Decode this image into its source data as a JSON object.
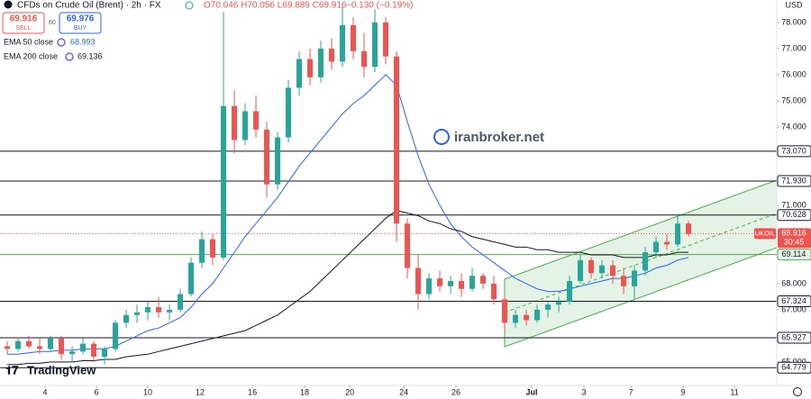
{
  "header": {
    "symbol": "CFDs on Crude Oil (Brent) · 2h · FX",
    "ohlc": "O70.046 H70.056 L69.889 C69.916",
    "change": "−0.130 (−0.19%)",
    "sell_price": "69.916",
    "sell": "SELL",
    "spread": "60",
    "buy_price": "69.976",
    "buy": "BUY",
    "currency": "USD",
    "watermark": "iranbroker.net",
    "brand": "TradingView"
  },
  "chart_data": {
    "type": "candlestick",
    "up_color": "#26a69a",
    "down_color": "#ef5350",
    "xlim": [
      -0.67,
      71.08
    ],
    "ylim": [
      64.1,
      78.86
    ],
    "xticks": [
      {
        "value": 3.5,
        "label": "4"
      },
      {
        "value": 8.25,
        "label": "6"
      },
      {
        "value": 13,
        "label": "10"
      },
      {
        "value": 17.83,
        "label": "12"
      },
      {
        "value": 22.67,
        "label": "16"
      },
      {
        "value": 27.5,
        "label": "18"
      },
      {
        "value": 31.67,
        "label": "20"
      },
      {
        "value": 36.67,
        "label": "24"
      },
      {
        "value": 41.5,
        "label": "26"
      },
      {
        "value": 48.5,
        "label": "Jul"
      },
      {
        "value": 53.33,
        "label": "3"
      },
      {
        "value": 57.67,
        "label": "7"
      },
      {
        "value": 62.5,
        "label": "9"
      },
      {
        "value": 67.25,
        "label": "11"
      }
    ],
    "yticks": [
      {
        "value": 78,
        "label": "78.000"
      },
      {
        "value": 77,
        "label": "77.000"
      },
      {
        "value": 76,
        "label": "76.000"
      },
      {
        "value": 75,
        "label": "75.000"
      },
      {
        "value": 74,
        "label": "74.000"
      },
      {
        "value": 71,
        "label": "71.000"
      },
      {
        "value": 68,
        "label": "68.000"
      },
      {
        "value": 67,
        "label": "67.000"
      },
      {
        "value": 65,
        "label": "65.000"
      }
    ],
    "levels": [
      {
        "value": 73.07,
        "label": "73.070",
        "color": "#131722"
      },
      {
        "value": 71.93,
        "label": "71.930",
        "color": "#131722"
      },
      {
        "value": 70.628,
        "label": "70.628",
        "color": "#131722"
      },
      {
        "value": 69.114,
        "label": "69.114",
        "color": "#4caf50"
      },
      {
        "value": 67.324,
        "label": "67.324",
        "color": "#131722"
      },
      {
        "value": 65.927,
        "label": "65.927",
        "color": "#131722"
      },
      {
        "value": 64.779,
        "label": "64.779",
        "color": "#131722"
      }
    ],
    "last_price": {
      "value": 69.916,
      "label": "69.916"
    },
    "symbol_tag": "UKOIL",
    "countdown": "30:45",
    "series": [
      {
        "name": "EMA 50 close",
        "legend_value": "68.993",
        "color": "#2962ff",
        "values": [
          65.3,
          65.3,
          65.35,
          65.4,
          65.4,
          65.45,
          65.45,
          65.5,
          65.5,
          65.5,
          65.6,
          65.8,
          66.0,
          66.2,
          66.3,
          66.5,
          66.7,
          67.1,
          67.6,
          68.0,
          68.6,
          69.2,
          69.8,
          70.3,
          70.8,
          71.3,
          71.9,
          72.5,
          73.0,
          73.5,
          74.0,
          74.5,
          74.9,
          75.2,
          75.6,
          76.0,
          75.6,
          74.2,
          72.9,
          71.8,
          71.0,
          70.3,
          69.8,
          69.4,
          69.1,
          68.8,
          68.5,
          68.2,
          68.0,
          67.8,
          67.7,
          67.7,
          67.8,
          67.9,
          68.0,
          68.1,
          68.2,
          68.2,
          68.3,
          68.4,
          68.6,
          68.7,
          68.9,
          69.0
        ]
      },
      {
        "name": "EMA 200 close",
        "legend_value": "69.136",
        "color": "#131722",
        "values": [
          64.9,
          64.9,
          64.95,
          64.95,
          65.0,
          65.0,
          65.0,
          65.05,
          65.05,
          65.1,
          65.1,
          65.2,
          65.25,
          65.3,
          65.4,
          65.5,
          65.6,
          65.7,
          65.8,
          65.9,
          66.0,
          66.1,
          66.2,
          66.4,
          66.6,
          66.8,
          67.1,
          67.4,
          67.7,
          68.1,
          68.5,
          68.9,
          69.3,
          69.7,
          70.1,
          70.5,
          70.8,
          70.7,
          70.6,
          70.4,
          70.3,
          70.1,
          70.0,
          69.8,
          69.7,
          69.6,
          69.5,
          69.4,
          69.4,
          69.3,
          69.3,
          69.2,
          69.2,
          69.2,
          69.1,
          69.1,
          69.1,
          69.0,
          69.0,
          69.0,
          69.1,
          69.1,
          69.2,
          69.2
        ]
      }
    ],
    "ohlc": [
      [
        65.6,
        65.8,
        65.3,
        65.5
      ],
      [
        65.5,
        65.9,
        65.4,
        65.8
      ],
      [
        65.8,
        66.0,
        65.5,
        65.6
      ],
      [
        65.6,
        65.9,
        65.3,
        65.5
      ],
      [
        65.5,
        66.0,
        65.4,
        65.9
      ],
      [
        65.9,
        66.0,
        65.1,
        65.3
      ],
      [
        65.3,
        65.6,
        65.0,
        65.4
      ],
      [
        65.4,
        65.9,
        65.3,
        65.7
      ],
      [
        65.7,
        65.8,
        65.0,
        65.2
      ],
      [
        65.2,
        65.6,
        64.9,
        65.5
      ],
      [
        65.5,
        66.6,
        65.4,
        66.5
      ],
      [
        66.5,
        67.0,
        66.3,
        66.8
      ],
      [
        66.8,
        67.2,
        66.5,
        66.9
      ],
      [
        66.9,
        67.3,
        66.6,
        67.1
      ],
      [
        67.1,
        67.5,
        66.7,
        66.9
      ],
      [
        66.9,
        67.2,
        66.6,
        67.0
      ],
      [
        67.0,
        67.8,
        66.9,
        67.6
      ],
      [
        67.6,
        69.0,
        67.5,
        68.8
      ],
      [
        68.8,
        70.0,
        68.6,
        69.7
      ],
      [
        69.7,
        69.9,
        68.7,
        69.0
      ],
      [
        69.0,
        78.4,
        68.9,
        74.8
      ],
      [
        74.8,
        75.4,
        73.0,
        73.5
      ],
      [
        73.5,
        74.9,
        73.3,
        74.6
      ],
      [
        74.6,
        75.2,
        73.6,
        73.9
      ],
      [
        73.9,
        74.2,
        71.3,
        71.8
      ],
      [
        71.8,
        73.8,
        71.6,
        73.6
      ],
      [
        73.6,
        75.8,
        73.4,
        75.5
      ],
      [
        75.5,
        76.9,
        75.2,
        76.6
      ],
      [
        76.6,
        77.0,
        75.6,
        75.9
      ],
      [
        75.9,
        77.3,
        75.7,
        77.0
      ],
      [
        77.0,
        77.4,
        76.2,
        76.5
      ],
      [
        76.5,
        78.6,
        76.3,
        77.9
      ],
      [
        77.9,
        78.2,
        76.6,
        76.9
      ],
      [
        76.9,
        77.6,
        75.9,
        76.3
      ],
      [
        76.3,
        78.5,
        76.1,
        78.0
      ],
      [
        78.0,
        78.2,
        76.4,
        76.7
      ],
      [
        76.7,
        76.9,
        69.6,
        70.3
      ],
      [
        70.3,
        70.5,
        68.2,
        68.6
      ],
      [
        68.6,
        69.1,
        67.0,
        67.6
      ],
      [
        67.6,
        68.4,
        67.4,
        68.2
      ],
      [
        68.2,
        68.5,
        67.7,
        67.9
      ],
      [
        67.9,
        68.3,
        67.6,
        68.1
      ],
      [
        68.1,
        68.4,
        67.5,
        67.8
      ],
      [
        67.8,
        68.6,
        67.7,
        68.3
      ],
      [
        68.3,
        68.4,
        67.8,
        68.0
      ],
      [
        68.0,
        68.3,
        67.2,
        67.4
      ],
      [
        67.4,
        67.5,
        66.1,
        66.5
      ],
      [
        66.5,
        67.0,
        66.3,
        66.8
      ],
      [
        66.8,
        67.0,
        66.4,
        66.6
      ],
      [
        66.6,
        67.2,
        66.5,
        67.0
      ],
      [
        67.0,
        67.3,
        66.7,
        67.2
      ],
      [
        67.2,
        67.5,
        66.9,
        67.3
      ],
      [
        67.3,
        68.3,
        67.2,
        68.1
      ],
      [
        68.1,
        69.1,
        68.0,
        68.9
      ],
      [
        68.9,
        69.0,
        68.2,
        68.4
      ],
      [
        68.4,
        68.9,
        68.2,
        68.7
      ],
      [
        68.7,
        68.9,
        68.0,
        68.3
      ],
      [
        68.3,
        68.6,
        67.6,
        67.9
      ],
      [
        67.9,
        68.7,
        67.4,
        68.5
      ],
      [
        68.5,
        69.4,
        68.3,
        69.2
      ],
      [
        69.2,
        69.8,
        69.0,
        69.6
      ],
      [
        69.6,
        69.9,
        69.3,
        69.5
      ],
      [
        69.5,
        70.6,
        69.4,
        70.3
      ],
      [
        70.3,
        70.4,
        69.8,
        69.9
      ]
    ]
  }
}
